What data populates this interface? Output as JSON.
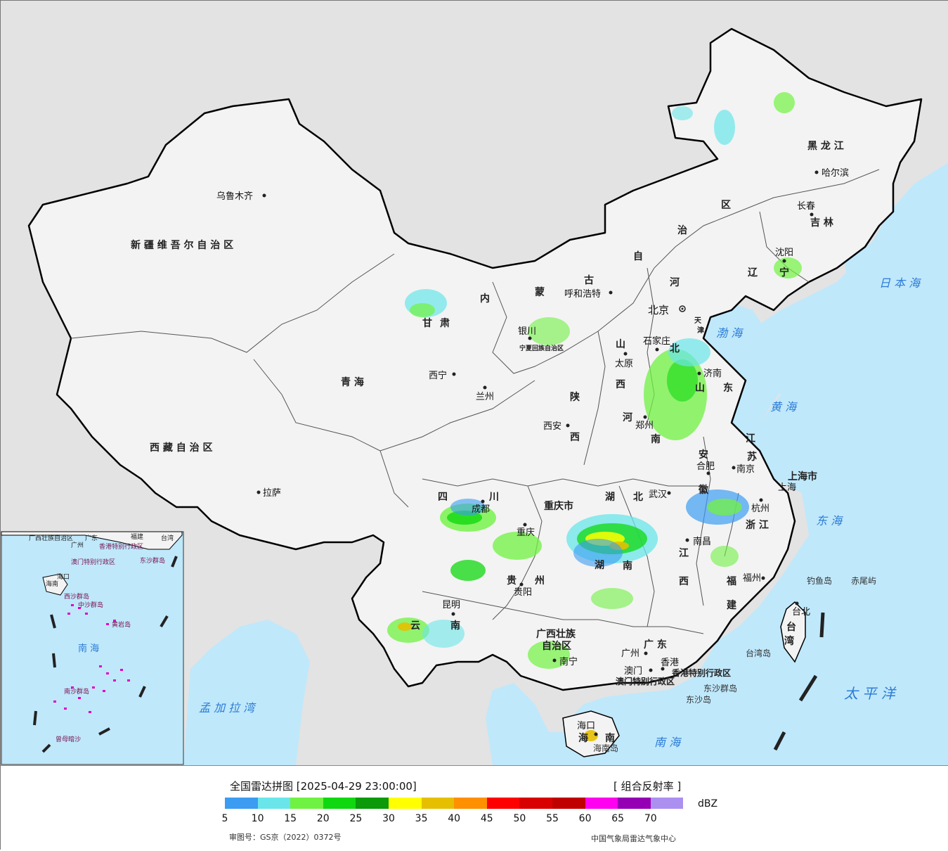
{
  "map": {
    "provinces": [
      {
        "name": "新 疆 维 吾 尔 自 治 区"
      },
      {
        "name": "西 藏 自 治 区"
      },
      {
        "name": "青 海"
      },
      {
        "name": "甘"
      },
      {
        "name": "肃"
      },
      {
        "name": "内"
      },
      {
        "name": "蒙"
      },
      {
        "name": "古"
      },
      {
        "name": "自"
      },
      {
        "name": "治"
      },
      {
        "name": "区"
      },
      {
        "name": "黑 龙 江"
      },
      {
        "name": "吉 林"
      },
      {
        "name": "辽"
      },
      {
        "name": "宁"
      },
      {
        "name": "河"
      },
      {
        "name": "北"
      },
      {
        "name": "山"
      },
      {
        "name": "西"
      },
      {
        "name": "山"
      },
      {
        "name": "东"
      },
      {
        "name": "陕"
      },
      {
        "name": "西"
      },
      {
        "name": "河"
      },
      {
        "name": "南"
      },
      {
        "name": "江"
      },
      {
        "name": "苏"
      },
      {
        "name": "安"
      },
      {
        "name": "徽"
      },
      {
        "name": "湖"
      },
      {
        "name": "北"
      },
      {
        "name": "四"
      },
      {
        "name": "川"
      },
      {
        "name": "重庆市"
      },
      {
        "name": "贵"
      },
      {
        "name": "州"
      },
      {
        "name": "云"
      },
      {
        "name": "南"
      },
      {
        "name": "湖"
      },
      {
        "name": "南"
      },
      {
        "name": "江"
      },
      {
        "name": "西"
      },
      {
        "name": "浙 江"
      },
      {
        "name": "福"
      },
      {
        "name": "建"
      },
      {
        "name": "广 东"
      },
      {
        "name": "广西壮族"
      },
      {
        "name": "自治区"
      },
      {
        "name": "海"
      },
      {
        "name": "南"
      },
      {
        "name": "台"
      },
      {
        "name": "湾"
      },
      {
        "name": "上海市"
      },
      {
        "name": "天"
      },
      {
        "name": "津"
      },
      {
        "name": "宁夏回族自治区"
      },
      {
        "name": "香港特别行政区"
      },
      {
        "name": "澳门特别行政区"
      }
    ],
    "cities": [
      {
        "name": "乌鲁木齐"
      },
      {
        "name": "拉萨"
      },
      {
        "name": "西宁"
      },
      {
        "name": "兰州"
      },
      {
        "name": "银川"
      },
      {
        "name": "呼和浩特"
      },
      {
        "name": "北京"
      },
      {
        "name": "石家庄"
      },
      {
        "name": "太原"
      },
      {
        "name": "济南"
      },
      {
        "name": "郑州"
      },
      {
        "name": "西安"
      },
      {
        "name": "合肥"
      },
      {
        "name": "南京"
      },
      {
        "name": "上海"
      },
      {
        "name": "杭州"
      },
      {
        "name": "武汉"
      },
      {
        "name": "成都"
      },
      {
        "name": "重庆"
      },
      {
        "name": "贵阳"
      },
      {
        "name": "昆明"
      },
      {
        "name": "南宁"
      },
      {
        "name": "广州"
      },
      {
        "name": "澳门"
      },
      {
        "name": "香港"
      },
      {
        "name": "南昌"
      },
      {
        "name": "福州"
      },
      {
        "name": "台北"
      },
      {
        "name": "海口"
      },
      {
        "name": "沈阳"
      },
      {
        "name": "长春"
      },
      {
        "name": "哈尔滨"
      }
    ],
    "seas": [
      {
        "name": "渤 海"
      },
      {
        "name": "黄 海"
      },
      {
        "name": "东 海"
      },
      {
        "name": "南 海"
      },
      {
        "name": "日 本 海"
      },
      {
        "name": "太 平 洋"
      },
      {
        "name": "孟 加 拉 湾"
      }
    ],
    "islands": [
      {
        "name": "钓鱼岛"
      },
      {
        "name": "赤尾屿"
      },
      {
        "name": "台湾岛"
      },
      {
        "name": "东沙群岛"
      },
      {
        "name": "东沙岛"
      },
      {
        "name": "海南岛"
      }
    ],
    "inset": {
      "labels": [
        {
          "name": "广西壮族自治区"
        },
        {
          "name": "广东"
        },
        {
          "name": "福建"
        },
        {
          "name": "台湾"
        },
        {
          "name": "广州"
        },
        {
          "name": "香港特别行政区"
        },
        {
          "name": "澳门特别行政区"
        },
        {
          "name": "东沙群岛"
        },
        {
          "name": "海南"
        },
        {
          "name": "海口"
        },
        {
          "name": "西沙群岛"
        },
        {
          "name": "中沙群岛"
        },
        {
          "name": "黄岩岛"
        },
        {
          "name": "南 海"
        },
        {
          "name": "南沙群岛"
        },
        {
          "name": "曾母暗沙"
        }
      ]
    },
    "colors": {
      "ocean": "#bfe8fb",
      "land_china": "#f3f3f3",
      "land_other": "#e3e3e3",
      "border": "#000000"
    }
  },
  "legend": {
    "title": "全国雷达拼图 [2025-04-29 23:00:00]",
    "product": "[ 组合反射率 ]",
    "unit": "dBZ",
    "ticks": [
      "5",
      "10",
      "15",
      "20",
      "25",
      "30",
      "35",
      "40",
      "45",
      "50",
      "55",
      "60",
      "65",
      "70"
    ],
    "colors": [
      "#3c9cf2",
      "#6ae6ea",
      "#70f242",
      "#10d810",
      "#0a9a0a",
      "#ffff00",
      "#e6c000",
      "#ff9000",
      "#ff0000",
      "#d80000",
      "#c00000",
      "#ff00f0",
      "#9600b4",
      "#ac90f0"
    ],
    "approval": "审图号：GS京（2022）0372号",
    "source": "中国气象局雷达气象中心"
  }
}
